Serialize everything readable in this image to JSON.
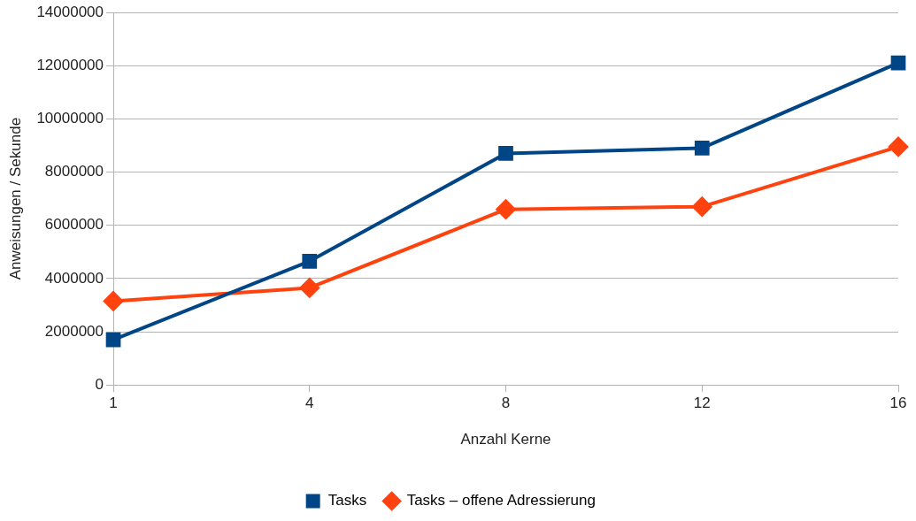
{
  "chart_data": {
    "type": "line",
    "xlabel": "Anzahl Kerne",
    "ylabel": "Anweisungen / Sekunde",
    "categories": [
      "1",
      "4",
      "8",
      "12",
      "16"
    ],
    "series": [
      {
        "name": "Tasks",
        "color": "#004586",
        "marker": "square",
        "values": [
          1700000,
          4650000,
          8700000,
          8900000,
          12100000
        ]
      },
      {
        "name": "Tasks – offene Adressierung",
        "color": "#ff420e",
        "marker": "diamond",
        "values": [
          3150000,
          3650000,
          6600000,
          6700000,
          8950000
        ]
      }
    ],
    "ylim": [
      0,
      14000000
    ],
    "yticks": [
      0,
      2000000,
      4000000,
      6000000,
      8000000,
      10000000,
      12000000,
      14000000
    ],
    "grid": "y",
    "legend": "bottom",
    "line_style": "solid"
  }
}
